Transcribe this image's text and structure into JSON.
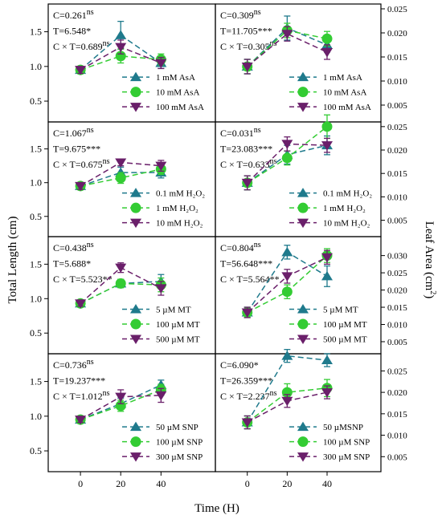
{
  "figure": {
    "ylabel_left": "Total Length (cm)",
    "ylabel_right": "Leaf Area (cm",
    "ylabel_right_sup": "2",
    "ylabel_right_close": ")",
    "xlabel": "Time (H)",
    "x_ticks": [
      "0",
      "20",
      "40"
    ],
    "left_ticks": [
      "0.5",
      "1.0",
      "1.5"
    ],
    "right_ticks": [
      "0.005",
      "0.010",
      "0.015",
      "0.020",
      "0.025"
    ],
    "right_ticks_mt": [
      "0.005",
      "0.010",
      "0.015",
      "0.020",
      "0.025",
      "0.030"
    ]
  },
  "colors": {
    "s0": "#1f7a8c",
    "s1": "#33cc33",
    "s2": "#6a1f6a"
  },
  "chart_data": [
    {
      "id": "asa-length",
      "type": "line",
      "axis": "left",
      "ylim": [
        0.2,
        1.9
      ],
      "x": [
        0,
        20,
        40
      ],
      "stats": [
        {
          "text": "C=0.261",
          "sup": "ns"
        },
        {
          "text": "T=6.548*",
          "sup": ""
        },
        {
          "text": "C × T=0.689",
          "sup": "ns"
        }
      ],
      "series": [
        {
          "name": "1 mM AsA",
          "values": [
            0.95,
            1.45,
            1.05
          ],
          "err": [
            0.05,
            0.2,
            0.08
          ]
        },
        {
          "name": "10 mM AsA",
          "values": [
            0.95,
            1.15,
            1.1
          ],
          "err": [
            0.05,
            0.1,
            0.08
          ]
        },
        {
          "name": "100 mM AsA",
          "values": [
            0.95,
            1.28,
            1.05
          ],
          "err": [
            0.05,
            0.1,
            0.08
          ]
        }
      ]
    },
    {
      "id": "asa-area",
      "type": "line",
      "axis": "right",
      "ylim": [
        0.0015,
        0.026
      ],
      "x": [
        0,
        20,
        40
      ],
      "stats": [
        {
          "text": "C=0.309",
          "sup": "ns"
        },
        {
          "text": "T=11.705***",
          "sup": ""
        },
        {
          "text": "C × T=0.305",
          "sup": "ns"
        }
      ],
      "series": [
        {
          "name": "1 mM AsA",
          "values": [
            0.013,
            0.021,
            0.0175
          ],
          "err": [
            0.0015,
            0.0025,
            0.0015
          ]
        },
        {
          "name": "10 mM AsA",
          "values": [
            0.013,
            0.0205,
            0.0188
          ],
          "err": [
            0.0015,
            0.0015,
            0.0015
          ]
        },
        {
          "name": "100 mM AsA",
          "values": [
            0.013,
            0.0198,
            0.016
          ],
          "err": [
            0.0015,
            0.0015,
            0.0015
          ]
        }
      ]
    },
    {
      "id": "h2o2-length",
      "type": "line",
      "axis": "left",
      "ylim": [
        0.2,
        1.9
      ],
      "x": [
        0,
        20,
        40
      ],
      "stats": [
        {
          "text": "C=1.067",
          "sup": "ns"
        },
        {
          "text": "T=9.675***",
          "sup": ""
        },
        {
          "text": "C × T=0.675",
          "sup": "ns"
        }
      ],
      "series": [
        {
          "name": "0.1 mM H₂O₂",
          "values": [
            0.95,
            1.15,
            1.15
          ],
          "err": [
            0.05,
            0.08,
            0.08
          ]
        },
        {
          "name": "1 mM H₂O₂",
          "values": [
            0.95,
            1.07,
            1.2
          ],
          "err": [
            0.05,
            0.08,
            0.08
          ]
        },
        {
          "name": "10 mM H₂O₂",
          "values": [
            0.95,
            1.3,
            1.25
          ],
          "err": [
            0.05,
            0.05,
            0.08
          ]
        }
      ]
    },
    {
      "id": "h2o2-area",
      "type": "line",
      "axis": "right",
      "ylim": [
        0.0015,
        0.026
      ],
      "x": [
        0,
        20,
        40
      ],
      "stats": [
        {
          "text": "C=0.031",
          "sup": "ns"
        },
        {
          "text": "T=23.083***",
          "sup": ""
        },
        {
          "text": "C × T=0.633",
          "sup": "ns"
        }
      ],
      "series": [
        {
          "name": "0.1 mM H₂O₂",
          "values": [
            0.013,
            0.019,
            0.021
          ],
          "err": [
            0.0015,
            0.002,
            0.002
          ]
        },
        {
          "name": "1 mM H₂O₂",
          "values": [
            0.013,
            0.0183,
            0.025
          ],
          "err": [
            0.0015,
            0.0015,
            0.0025
          ]
        },
        {
          "name": "10 mM H₂O₂",
          "values": [
            0.013,
            0.0213,
            0.021
          ],
          "err": [
            0.0015,
            0.0015,
            0.0015
          ]
        }
      ]
    },
    {
      "id": "mt-length",
      "type": "line",
      "axis": "left",
      "ylim": [
        0.2,
        1.9
      ],
      "x": [
        0,
        20,
        40
      ],
      "stats": [
        {
          "text": "C=0.438",
          "sup": "ns"
        },
        {
          "text": "T=5.688*",
          "sup": ""
        },
        {
          "text": "C × T=5.523**",
          "sup": ""
        }
      ],
      "series": [
        {
          "name": "5 µM MT",
          "values": [
            0.93,
            1.22,
            1.25
          ],
          "err": [
            0.04,
            0.06,
            0.1
          ]
        },
        {
          "name": "100 µM MT",
          "values": [
            0.93,
            1.22,
            1.2
          ],
          "err": [
            0.04,
            0.06,
            0.1
          ]
        },
        {
          "name": "500 µM MT",
          "values": [
            0.93,
            1.45,
            1.15
          ],
          "err": [
            0.04,
            0.07,
            0.1
          ]
        }
      ]
    },
    {
      "id": "mt-area",
      "type": "line",
      "axis": "right",
      "ylim": [
        0.0015,
        0.0355
      ],
      "x": [
        0,
        20,
        40
      ],
      "stats": [
        {
          "text": "C=0.804",
          "sup": "ns"
        },
        {
          "text": "T=56.648***",
          "sup": ""
        },
        {
          "text": "C × T=5.564**",
          "sup": ""
        }
      ],
      "series": [
        {
          "name": "5 µM MT",
          "values": [
            0.0135,
            0.031,
            0.024
          ],
          "err": [
            0.0015,
            0.002,
            0.003
          ]
        },
        {
          "name": "100 µM MT",
          "values": [
            0.0135,
            0.0195,
            0.03
          ],
          "err": [
            0.0015,
            0.002,
            0.002
          ]
        },
        {
          "name": "500 µM MT",
          "values": [
            0.0135,
            0.024,
            0.0295
          ],
          "err": [
            0.0015,
            0.002,
            0.002
          ]
        }
      ]
    },
    {
      "id": "snp-length",
      "type": "line",
      "axis": "left",
      "ylim": [
        0.2,
        1.9
      ],
      "x": [
        0,
        20,
        40
      ],
      "stats": [
        {
          "text": "C=0.736",
          "sup": "ns"
        },
        {
          "text": "T=19.237***",
          "sup": ""
        },
        {
          "text": "C × T=1.012",
          "sup": "ns"
        }
      ],
      "series": [
        {
          "name": "50 µM SNP",
          "values": [
            0.95,
            1.18,
            1.45
          ],
          "err": [
            0.04,
            0.08,
            0.07
          ]
        },
        {
          "name": "100 µM SNP",
          "values": [
            0.95,
            1.15,
            1.38
          ],
          "err": [
            0.04,
            0.08,
            0.08
          ]
        },
        {
          "name": "300 µM SNP",
          "values": [
            0.95,
            1.28,
            1.3
          ],
          "err": [
            0.04,
            0.1,
            0.1
          ]
        }
      ]
    },
    {
      "id": "snp-area",
      "type": "line",
      "axis": "right",
      "ylim": [
        0.0015,
        0.029
      ],
      "x": [
        0,
        20,
        40
      ],
      "stats": [
        {
          "text": "C=6.090*",
          "sup": ""
        },
        {
          "text": "T=26.359***",
          "sup": ""
        },
        {
          "text": "C × T=2.237",
          "sup": "ns"
        }
      ],
      "series": [
        {
          "name": "50 µMSNP",
          "values": [
            0.013,
            0.0285,
            0.0275
          ],
          "err": [
            0.0015,
            0.0015,
            0.0015
          ]
        },
        {
          "name": "100 µM SNP",
          "values": [
            0.013,
            0.02,
            0.021
          ],
          "err": [
            0.0015,
            0.002,
            0.002
          ]
        },
        {
          "name": "300 µM SNP",
          "values": [
            0.013,
            0.018,
            0.02
          ],
          "err": [
            0.0015,
            0.0015,
            0.0015
          ]
        }
      ]
    }
  ]
}
